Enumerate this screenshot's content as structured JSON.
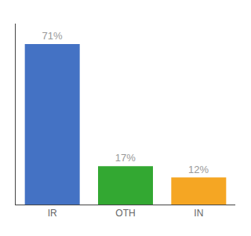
{
  "chart_data": {
    "type": "bar",
    "categories": [
      "IR",
      "OTH",
      "IN"
    ],
    "values": [
      71,
      17,
      12
    ],
    "value_labels": [
      "71%",
      "17%",
      "12%"
    ],
    "colors": [
      "#4472c4",
      "#33a832",
      "#f5a623"
    ],
    "ylim": [
      0,
      80
    ],
    "grid": false,
    "data_labels": true,
    "tick_labels": "x"
  }
}
